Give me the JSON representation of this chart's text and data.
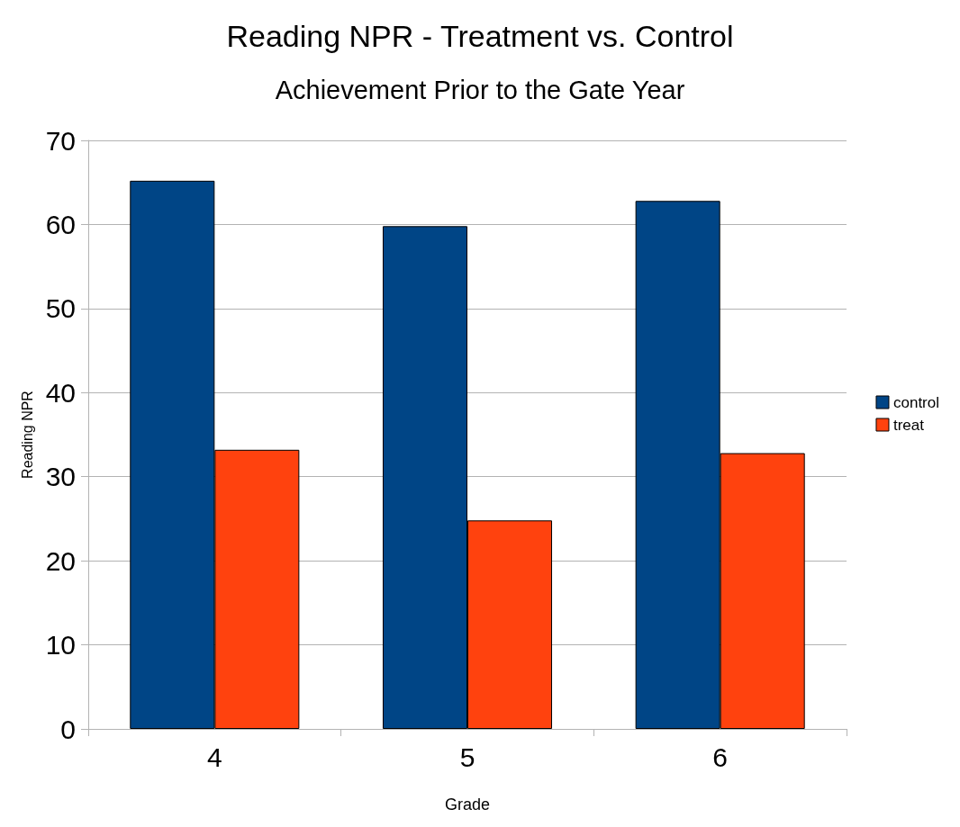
{
  "chart_data": {
    "type": "bar",
    "title": "Reading NPR - Treatment vs. Control",
    "subtitle": "Achievement Prior to the Gate Year",
    "xlabel": "Grade",
    "ylabel": "Reading NPR",
    "categories": [
      "4",
      "5",
      "6"
    ],
    "series": [
      {
        "name": "control",
        "color": "#004586",
        "values": [
          65.2,
          59.8,
          62.8
        ]
      },
      {
        "name": "treat",
        "color": "#ff420e",
        "values": [
          33.2,
          24.8,
          32.8
        ]
      }
    ],
    "ylim": [
      0,
      70
    ],
    "yticks": [
      0,
      10,
      20,
      30,
      40,
      50,
      60,
      70
    ],
    "grid": "y",
    "legend": "right"
  }
}
